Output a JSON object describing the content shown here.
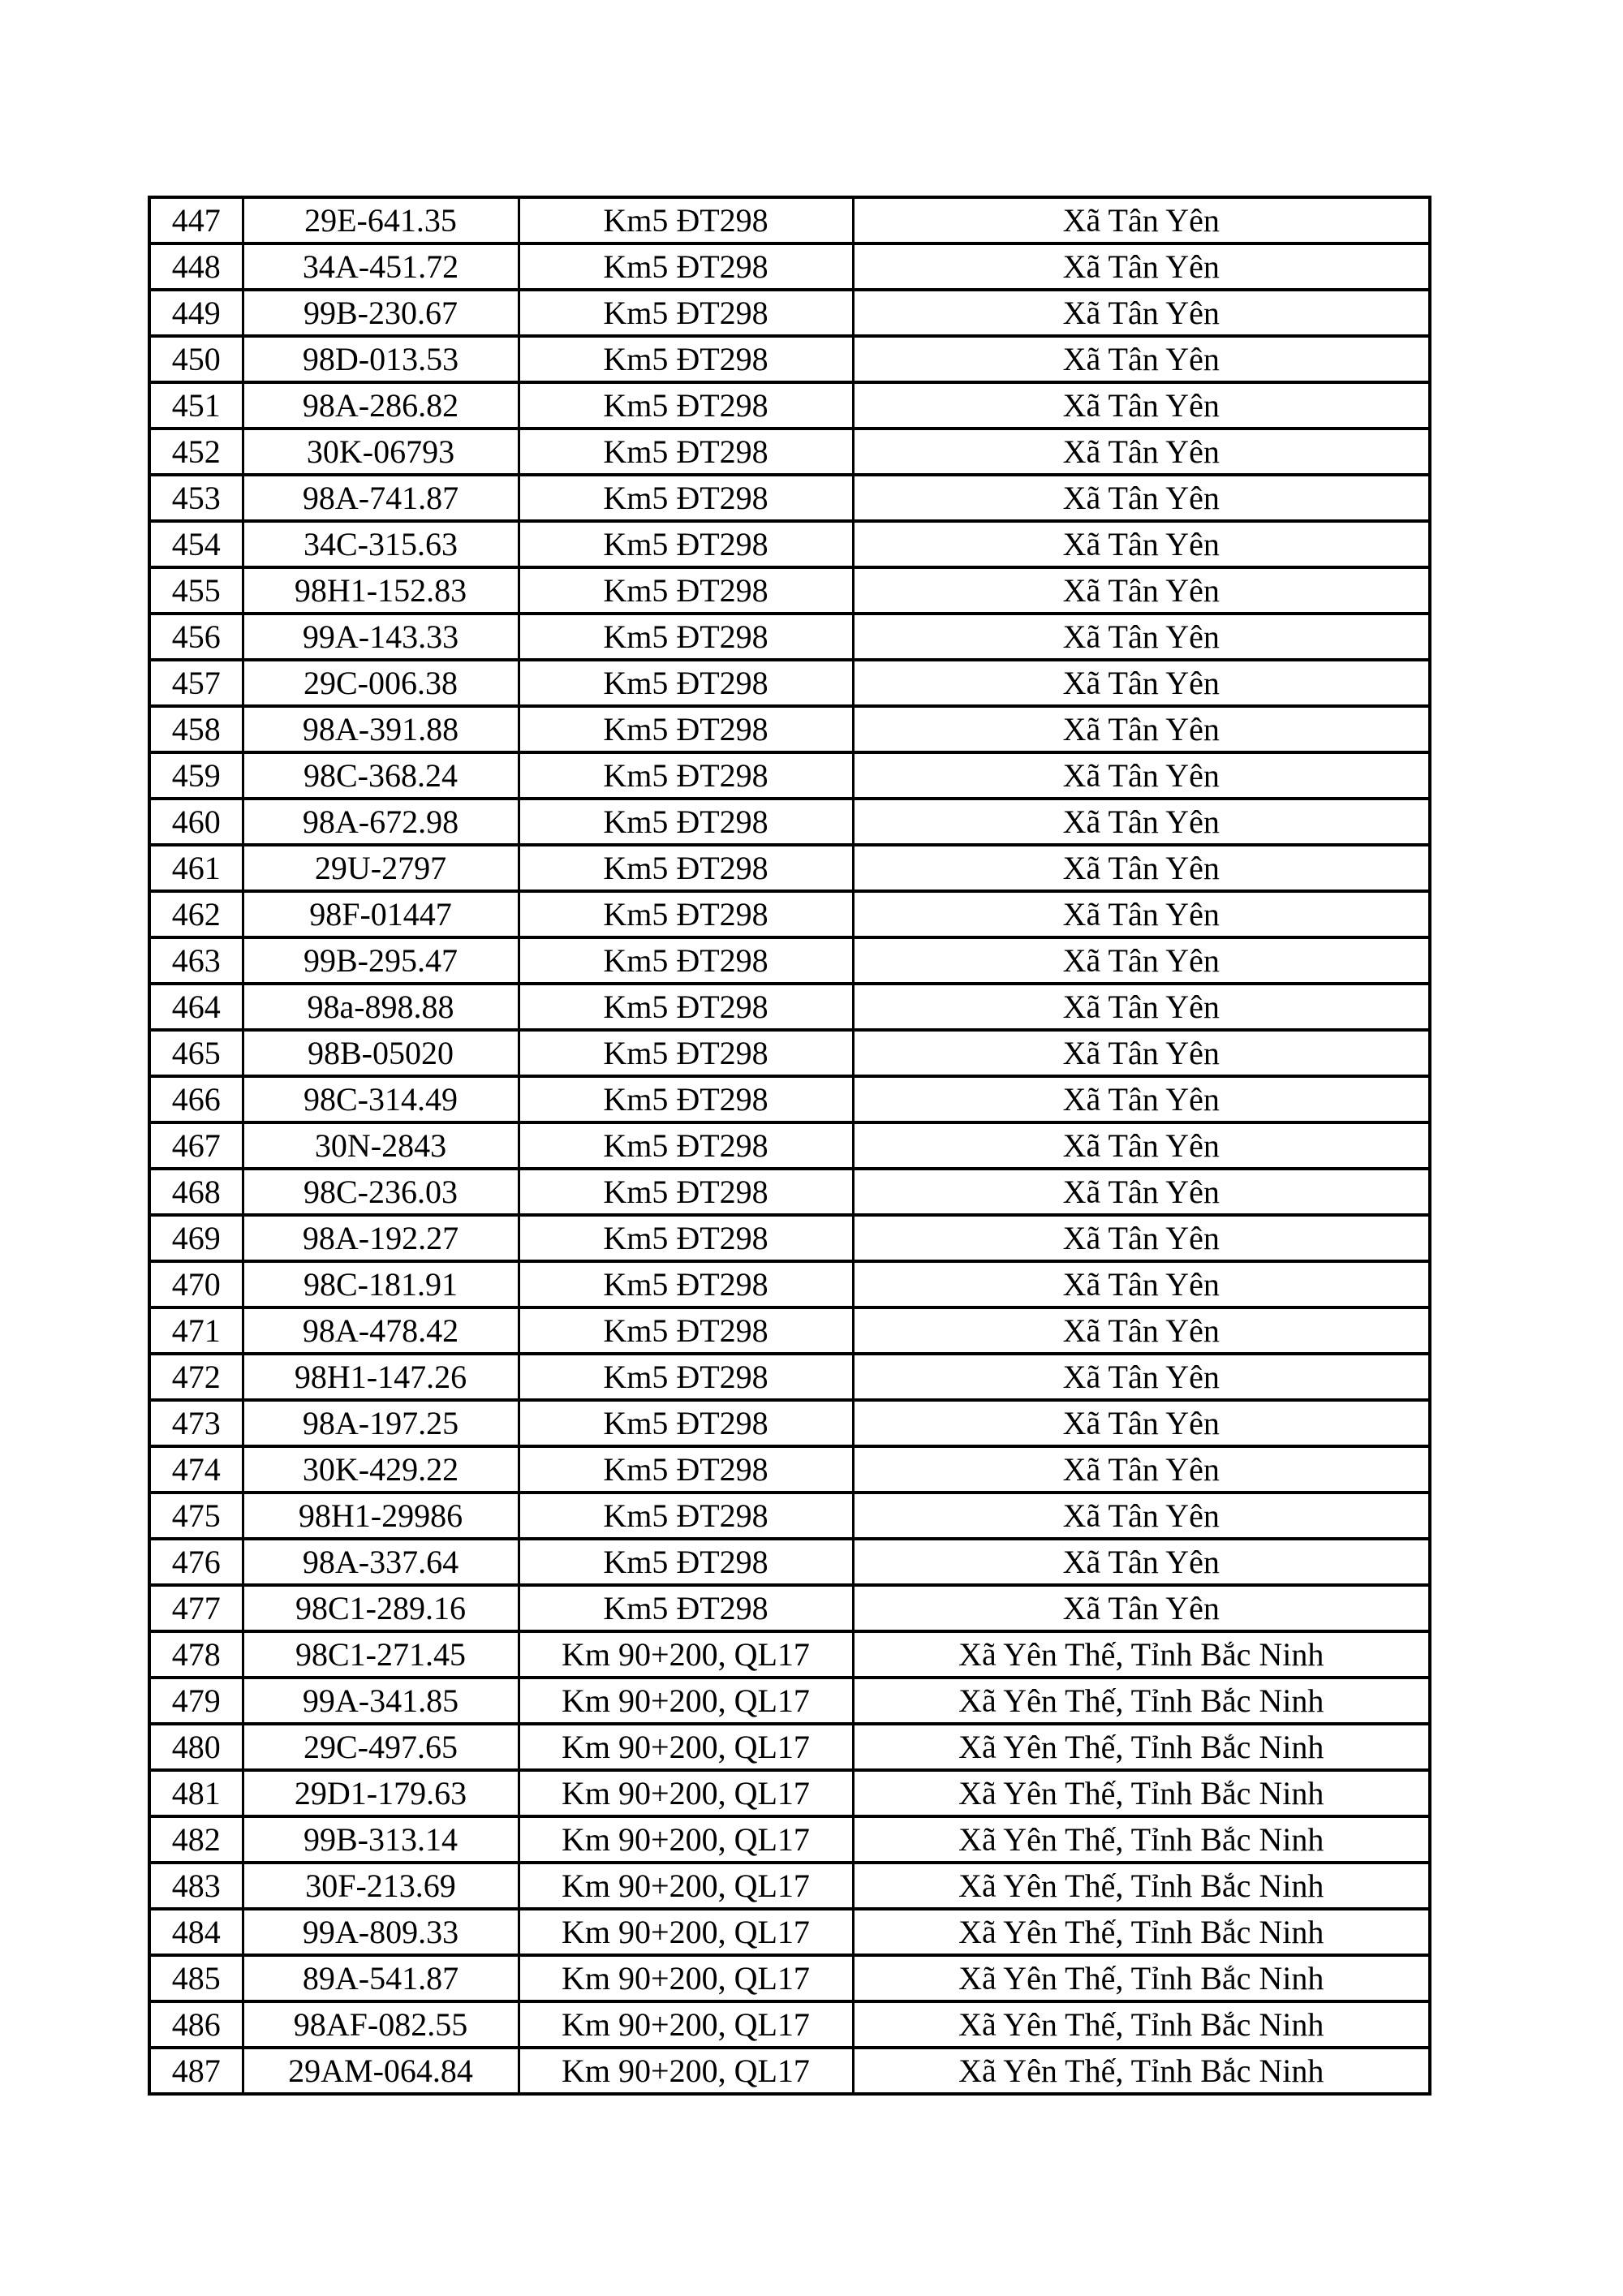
{
  "page": {
    "background_color": "#ffffff",
    "text_color": "#000000",
    "border_color": "#000000"
  },
  "table": {
    "columns": [
      "row_number",
      "plate",
      "location",
      "commune"
    ],
    "rows": [
      {
        "no": "447",
        "plate": "29E-641.35",
        "location": "Km5 ĐT298",
        "commune": "Xã Tân Yên"
      },
      {
        "no": "448",
        "plate": "34A-451.72",
        "location": "Km5 ĐT298",
        "commune": "Xã Tân Yên"
      },
      {
        "no": "449",
        "plate": "99B-230.67",
        "location": "Km5 ĐT298",
        "commune": "Xã Tân Yên"
      },
      {
        "no": "450",
        "plate": "98D-013.53",
        "location": "Km5 ĐT298",
        "commune": "Xã Tân Yên"
      },
      {
        "no": "451",
        "plate": "98A-286.82",
        "location": "Km5 ĐT298",
        "commune": "Xã Tân Yên"
      },
      {
        "no": "452",
        "plate": "30K-06793",
        "location": "Km5 ĐT298",
        "commune": "Xã Tân Yên"
      },
      {
        "no": "453",
        "plate": "98A-741.87",
        "location": "Km5 ĐT298",
        "commune": "Xã Tân Yên"
      },
      {
        "no": "454",
        "plate": "34C-315.63",
        "location": "Km5 ĐT298",
        "commune": "Xã Tân Yên"
      },
      {
        "no": "455",
        "plate": "98H1-152.83",
        "location": "Km5 ĐT298",
        "commune": "Xã Tân Yên"
      },
      {
        "no": "456",
        "plate": "99A-143.33",
        "location": "Km5 ĐT298",
        "commune": "Xã Tân Yên"
      },
      {
        "no": "457",
        "plate": "29C-006.38",
        "location": "Km5 ĐT298",
        "commune": "Xã Tân Yên"
      },
      {
        "no": "458",
        "plate": "98A-391.88",
        "location": "Km5 ĐT298",
        "commune": "Xã Tân Yên"
      },
      {
        "no": "459",
        "plate": "98C-368.24",
        "location": "Km5 ĐT298",
        "commune": "Xã Tân Yên"
      },
      {
        "no": "460",
        "plate": "98A-672.98",
        "location": "Km5 ĐT298",
        "commune": "Xã Tân Yên"
      },
      {
        "no": "461",
        "plate": "29U-2797",
        "location": "Km5 ĐT298",
        "commune": "Xã Tân Yên"
      },
      {
        "no": "462",
        "plate": "98F-01447",
        "location": "Km5 ĐT298",
        "commune": "Xã Tân Yên"
      },
      {
        "no": "463",
        "plate": "99B-295.47",
        "location": "Km5 ĐT298",
        "commune": "Xã Tân Yên"
      },
      {
        "no": "464",
        "plate": "98a-898.88",
        "location": "Km5 ĐT298",
        "commune": "Xã Tân Yên"
      },
      {
        "no": "465",
        "plate": "98B-05020",
        "location": "Km5 ĐT298",
        "commune": "Xã Tân Yên"
      },
      {
        "no": "466",
        "plate": "98C-314.49",
        "location": "Km5 ĐT298",
        "commune": "Xã Tân Yên"
      },
      {
        "no": "467",
        "plate": "30N-2843",
        "location": "Km5 ĐT298",
        "commune": "Xã Tân Yên"
      },
      {
        "no": "468",
        "plate": "98C-236.03",
        "location": "Km5 ĐT298",
        "commune": "Xã Tân Yên"
      },
      {
        "no": "469",
        "plate": "98A-192.27",
        "location": "Km5 ĐT298",
        "commune": "Xã Tân Yên"
      },
      {
        "no": "470",
        "plate": "98C-181.91",
        "location": "Km5 ĐT298",
        "commune": "Xã Tân Yên"
      },
      {
        "no": "471",
        "plate": "98A-478.42",
        "location": "Km5 ĐT298",
        "commune": "Xã Tân Yên"
      },
      {
        "no": "472",
        "plate": "98H1-147.26",
        "location": "Km5 ĐT298",
        "commune": "Xã Tân Yên"
      },
      {
        "no": "473",
        "plate": "98A-197.25",
        "location": "Km5 ĐT298",
        "commune": "Xã Tân Yên"
      },
      {
        "no": "474",
        "plate": "30K-429.22",
        "location": "Km5 ĐT298",
        "commune": "Xã Tân Yên"
      },
      {
        "no": "475",
        "plate": "98H1-29986",
        "location": "Km5 ĐT298",
        "commune": "Xã Tân Yên"
      },
      {
        "no": "476",
        "plate": "98A-337.64",
        "location": "Km5 ĐT298",
        "commune": "Xã Tân Yên"
      },
      {
        "no": "477",
        "plate": "98C1-289.16",
        "location": "Km5 ĐT298",
        "commune": "Xã Tân Yên"
      },
      {
        "no": "478",
        "plate": "98C1-271.45",
        "location": "Km 90+200, QL17",
        "commune": "Xã Yên Thế, Tỉnh Bắc Ninh"
      },
      {
        "no": "479",
        "plate": "99A-341.85",
        "location": "Km 90+200, QL17",
        "commune": "Xã Yên Thế, Tỉnh Bắc Ninh"
      },
      {
        "no": "480",
        "plate": "29C-497.65",
        "location": "Km 90+200, QL17",
        "commune": "Xã Yên Thế, Tỉnh Bắc Ninh"
      },
      {
        "no": "481",
        "plate": "29D1-179.63",
        "location": "Km 90+200, QL17",
        "commune": "Xã Yên Thế, Tỉnh Bắc Ninh"
      },
      {
        "no": "482",
        "plate": "99B-313.14",
        "location": "Km 90+200, QL17",
        "commune": "Xã Yên Thế, Tỉnh Bắc Ninh"
      },
      {
        "no": "483",
        "plate": "30F-213.69",
        "location": "Km 90+200, QL17",
        "commune": "Xã Yên Thế, Tỉnh Bắc Ninh"
      },
      {
        "no": "484",
        "plate": "99A-809.33",
        "location": "Km 90+200, QL17",
        "commune": "Xã Yên Thế, Tỉnh Bắc Ninh"
      },
      {
        "no": "485",
        "plate": "89A-541.87",
        "location": "Km 90+200, QL17",
        "commune": "Xã Yên Thế, Tỉnh Bắc Ninh"
      },
      {
        "no": "486",
        "plate": "98AF-082.55",
        "location": "Km 90+200, QL17",
        "commune": "Xã Yên Thế, Tỉnh Bắc Ninh"
      },
      {
        "no": "487",
        "plate": "29AM-064.84",
        "location": "Km 90+200, QL17",
        "commune": "Xã Yên Thế, Tỉnh Bắc Ninh"
      }
    ]
  }
}
